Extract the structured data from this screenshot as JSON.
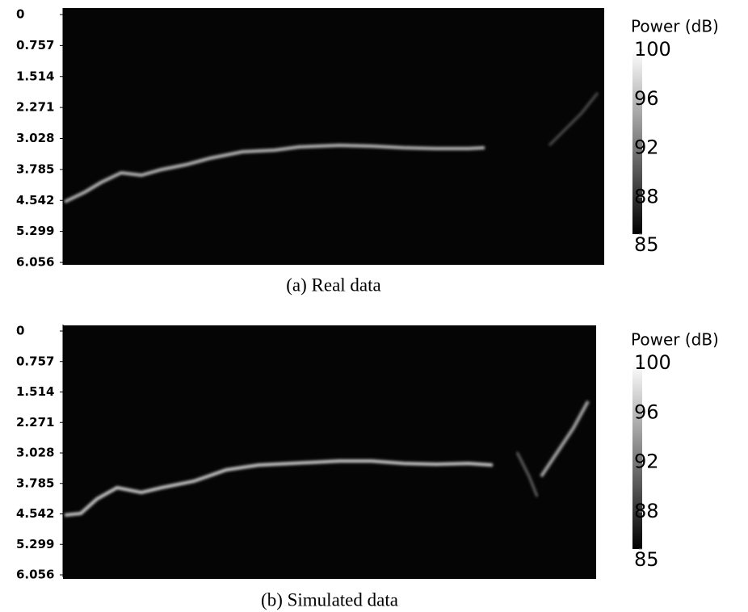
{
  "chart_data": [
    {
      "type": "heatmap",
      "caption": "(a) Real data",
      "ylim": [
        0,
        6.056
      ],
      "yticks": [
        0,
        0.757,
        1.514,
        2.271,
        3.028,
        3.785,
        4.542,
        5.299,
        6.056
      ],
      "invert_y": true,
      "colorbar": {
        "label": "Power (dB)",
        "lim": [
          85,
          100
        ],
        "ticks": [
          85,
          88,
          92,
          96,
          100
        ]
      }
    },
    {
      "type": "heatmap",
      "caption": "(b) Simulated data",
      "ylim": [
        0,
        6.056
      ],
      "yticks": [
        0,
        0.757,
        1.514,
        2.271,
        3.028,
        3.785,
        4.542,
        5.299,
        6.056
      ],
      "invert_y": true,
      "colorbar": {
        "label": "Power (dB)",
        "lim": [
          85,
          100
        ],
        "ticks": [
          85,
          88,
          92,
          96,
          100
        ]
      }
    }
  ]
}
